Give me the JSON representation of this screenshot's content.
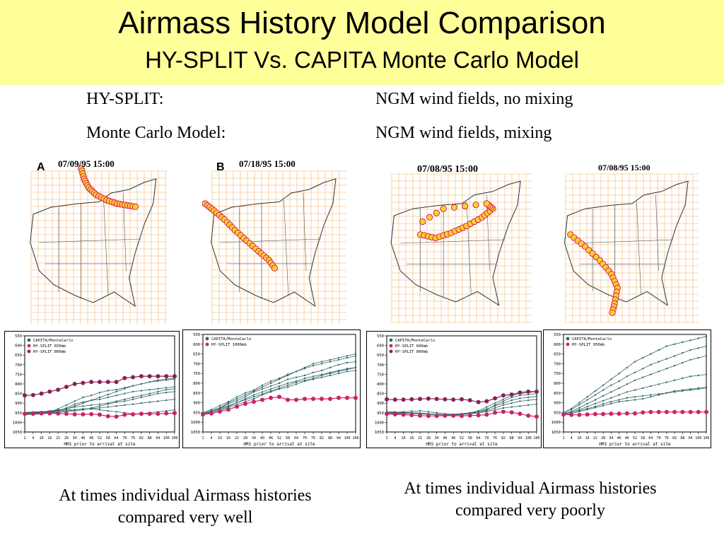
{
  "title": {
    "line1": "Airmass History Model Comparison",
    "line2": "HY-SPLIT  Vs.  CAPITA Monte Carlo Model"
  },
  "descriptions": [
    {
      "label": "HY-SPLIT:",
      "value": "NGM wind fields, no mixing"
    },
    {
      "label": "Monte Carlo Model:",
      "value": "NGM wind fields, mixing"
    }
  ],
  "maps": [
    {
      "label": "A",
      "date": "07/09/95    15:00"
    },
    {
      "label": "B",
      "date": "07/18/95    15:00"
    },
    {
      "label": "",
      "date": "07/08/95    15:00"
    },
    {
      "label": "",
      "date": "07/08/95    15:00"
    }
  ],
  "colors": {
    "title_bg": "#ffff99",
    "map_grid": "#f4c690",
    "trajectory_dot": "#ffcc33",
    "hysplit_line": "#cc2266",
    "montecarlo_line": "#336666"
  },
  "chart_data": [
    {
      "type": "line",
      "x_tick_labels": [
        "1",
        "4",
        "10",
        "16",
        "22",
        "28",
        "34",
        "40",
        "46",
        "52",
        "58",
        "64",
        "70",
        "76",
        "82",
        "88",
        "94",
        "100",
        "106"
      ],
      "y_tick_labels": [
        "550",
        "600",
        "650",
        "700",
        "750",
        "800",
        "850",
        "900",
        "950",
        "1000",
        "1050"
      ],
      "ylim": [
        1050,
        550
      ],
      "xlabel": "HRS prior to arrival at site",
      "legend": [
        "CAPITA/MonteCarlo",
        "HY-SPLIT 650mb",
        "HY-SPLIT 800mb"
      ],
      "series": [
        {
          "name": "HY-SPLIT 650mb",
          "values": [
            955,
            955,
            953,
            953,
            954,
            955,
            958,
            958,
            957,
            960,
            968,
            970,
            960,
            958,
            955,
            955,
            955,
            953,
            952
          ]
        },
        {
          "name": "HY-SPLIT 800mb",
          "values": [
            860,
            858,
            850,
            840,
            830,
            815,
            800,
            795,
            790,
            790,
            790,
            790,
            770,
            765,
            760,
            760,
            760,
            760,
            760
          ]
        }
      ],
      "ensemble": [
        [
          952,
          950,
          949,
          945,
          930,
          910,
          890,
          870,
          860,
          845,
          835,
          830,
          820,
          810,
          800,
          790,
          780,
          775,
          770
        ],
        [
          955,
          952,
          950,
          948,
          940,
          925,
          905,
          895,
          885,
          880,
          870,
          860,
          850,
          840,
          835,
          830,
          825,
          820,
          815
        ],
        [
          950,
          948,
          945,
          940,
          935,
          930,
          920,
          915,
          910,
          905,
          900,
          890,
          880,
          870,
          860,
          850,
          840,
          830,
          825
        ],
        [
          960,
          958,
          956,
          950,
          945,
          940,
          935,
          930,
          928,
          925,
          920,
          915,
          910,
          905,
          900,
          895,
          890,
          885,
          880
        ],
        [
          950,
          950,
          948,
          945,
          940,
          935,
          935,
          930,
          930,
          935,
          940,
          945,
          950,
          955,
          955,
          950,
          945,
          940,
          935
        ],
        [
          958,
          955,
          952,
          950,
          948,
          945,
          940,
          935,
          925,
          915,
          905,
          895,
          890,
          880,
          870,
          860,
          850,
          845,
          840
        ],
        [
          948,
          946,
          944,
          942,
          938,
          930,
          915,
          900,
          885,
          870,
          855,
          840,
          825,
          810,
          800,
          790,
          785,
          780,
          775
        ]
      ]
    },
    {
      "type": "line",
      "x_tick_labels": [
        "1",
        "4",
        "10",
        "16",
        "22",
        "28",
        "34",
        "40",
        "46",
        "52",
        "58",
        "64",
        "70",
        "76",
        "82",
        "88",
        "94",
        "100",
        "106"
      ],
      "y_tick_labels": [
        "550",
        "600",
        "650",
        "700",
        "750",
        "800",
        "850",
        "900",
        "950",
        "1000",
        "1050"
      ],
      "ylim": [
        1050,
        550
      ],
      "xlabel": "HRS prior to arrival at site",
      "legend": [
        "CAPITA/MonteCarlo",
        "HY-SPLIT 1000mb"
      ],
      "series": [
        {
          "name": "HY-SPLIT 1000mb",
          "values": [
            960,
            955,
            945,
            935,
            920,
            905,
            895,
            885,
            875,
            870,
            885,
            885,
            880,
            880,
            880,
            880,
            875,
            875,
            875
          ]
        }
      ],
      "ensemble": [
        [
          955,
          940,
          925,
          900,
          880,
          860,
          840,
          820,
          800,
          780,
          760,
          740,
          720,
          700,
          690,
          680,
          670,
          660,
          650
        ],
        [
          950,
          935,
          915,
          895,
          870,
          850,
          835,
          810,
          790,
          775,
          755,
          740,
          725,
          710,
          700,
          690,
          680,
          670,
          660
        ],
        [
          960,
          945,
          930,
          905,
          890,
          870,
          845,
          830,
          815,
          800,
          780,
          770,
          760,
          745,
          735,
          720,
          705,
          695,
          690
        ],
        [
          958,
          945,
          935,
          920,
          900,
          880,
          860,
          845,
          830,
          815,
          800,
          790,
          775,
          765,
          755,
          745,
          735,
          725,
          720
        ],
        [
          962,
          950,
          940,
          925,
          910,
          895,
          880,
          860,
          845,
          830,
          820,
          805,
          790,
          780,
          770,
          760,
          750,
          740,
          735
        ],
        [
          955,
          945,
          930,
          915,
          900,
          885,
          870,
          855,
          840,
          825,
          810,
          795,
          785,
          775,
          760,
          750,
          740,
          730,
          720
        ]
      ]
    },
    {
      "type": "line",
      "x_tick_labels": [
        "1",
        "4",
        "10",
        "16",
        "22",
        "28",
        "34",
        "40",
        "46",
        "52",
        "58",
        "64",
        "70",
        "76",
        "82",
        "88",
        "94",
        "100",
        "106"
      ],
      "y_tick_labels": [
        "550",
        "600",
        "650",
        "700",
        "750",
        "800",
        "850",
        "900",
        "950",
        "1000",
        "1050"
      ],
      "ylim": [
        1050,
        550
      ],
      "xlabel": "HRS prior to arrival at site",
      "legend": [
        "CAPITA/MonteCarlo",
        "HY-SPLIT 600mb",
        "HY-SPLIT 800mb"
      ],
      "series": [
        {
          "name": "HY-SPLIT 600mb",
          "values": [
            955,
            958,
            960,
            962,
            965,
            966,
            966,
            965,
            965,
            966,
            964,
            963,
            960,
            950,
            945,
            948,
            955,
            965,
            970
          ]
        },
        {
          "name": "HY-SPLIT 800mb",
          "values": [
            880,
            882,
            882,
            880,
            878,
            876,
            878,
            880,
            882,
            880,
            885,
            895,
            890,
            875,
            860,
            855,
            845,
            840,
            840
          ]
        }
      ],
      "ensemble": [
        [
          950,
          948,
          945,
          942,
          940,
          945,
          950,
          955,
          958,
          955,
          950,
          940,
          920,
          900,
          880,
          860,
          850,
          845,
          840
        ],
        [
          945,
          946,
          948,
          950,
          952,
          955,
          958,
          960,
          958,
          955,
          950,
          945,
          935,
          910,
          890,
          870,
          860,
          855,
          850
        ],
        [
          955,
          952,
          950,
          950,
          952,
          955,
          958,
          960,
          962,
          960,
          955,
          945,
          930,
          915,
          900,
          885,
          875,
          870,
          865
        ],
        [
          958,
          955,
          954,
          954,
          955,
          958,
          960,
          962,
          960,
          958,
          955,
          950,
          945,
          935,
          925,
          920,
          915,
          910,
          905
        ],
        [
          950,
          950,
          952,
          954,
          955,
          956,
          958,
          960,
          960,
          958,
          955,
          950,
          940,
          925,
          910,
          900,
          890,
          885,
          880
        ]
      ]
    },
    {
      "type": "line",
      "x_tick_labels": [
        "1",
        "4",
        "10",
        "16",
        "22",
        "28",
        "34",
        "40",
        "46",
        "52",
        "58",
        "64",
        "70",
        "76",
        "82",
        "88",
        "94",
        "100",
        "106"
      ],
      "y_tick_labels": [
        "550",
        "600",
        "650",
        "700",
        "750",
        "800",
        "850",
        "900",
        "950",
        "1000",
        "1050"
      ],
      "ylim": [
        1050,
        550
      ],
      "xlabel": "HRS prior to arrival at site",
      "legend": [
        "CAPITA/MonteCarlo",
        "HY-SPLIT 950mb"
      ],
      "series": [
        {
          "name": "HY-SPLIT 950mb",
          "values": [
            960,
            962,
            962,
            960,
            958,
            958,
            956,
            956,
            955,
            955,
            950,
            948,
            948,
            948,
            948,
            948,
            948,
            948,
            948
          ]
        }
      ],
      "ensemble": [
        [
          950,
          930,
          900,
          870,
          840,
          810,
          780,
          750,
          720,
          690,
          670,
          650,
          630,
          610,
          600,
          590,
          580,
          570,
          560
        ],
        [
          955,
          935,
          910,
          885,
          860,
          835,
          810,
          790,
          765,
          745,
          725,
          705,
          690,
          675,
          660,
          645,
          630,
          620,
          610
        ],
        [
          960,
          945,
          925,
          905,
          885,
          865,
          845,
          825,
          805,
          785,
          770,
          755,
          740,
          725,
          710,
          695,
          680,
          670,
          660
        ],
        [
          958,
          950,
          935,
          920,
          905,
          890,
          875,
          860,
          845,
          835,
          825,
          815,
          805,
          795,
          785,
          775,
          765,
          760,
          755
        ],
        [
          962,
          955,
          945,
          935,
          925,
          915,
          905,
          895,
          890,
          885,
          880,
          870,
          860,
          850,
          845,
          840,
          835,
          830,
          825
        ],
        [
          955,
          948,
          940,
          930,
          920,
          905,
          895,
          885,
          875,
          870,
          865,
          860,
          855,
          850,
          840,
          835,
          830,
          825,
          820
        ]
      ]
    }
  ],
  "captions": [
    "At times individual Airmass histories compared very well",
    "At times individual Airmass histories compared very poorly"
  ]
}
